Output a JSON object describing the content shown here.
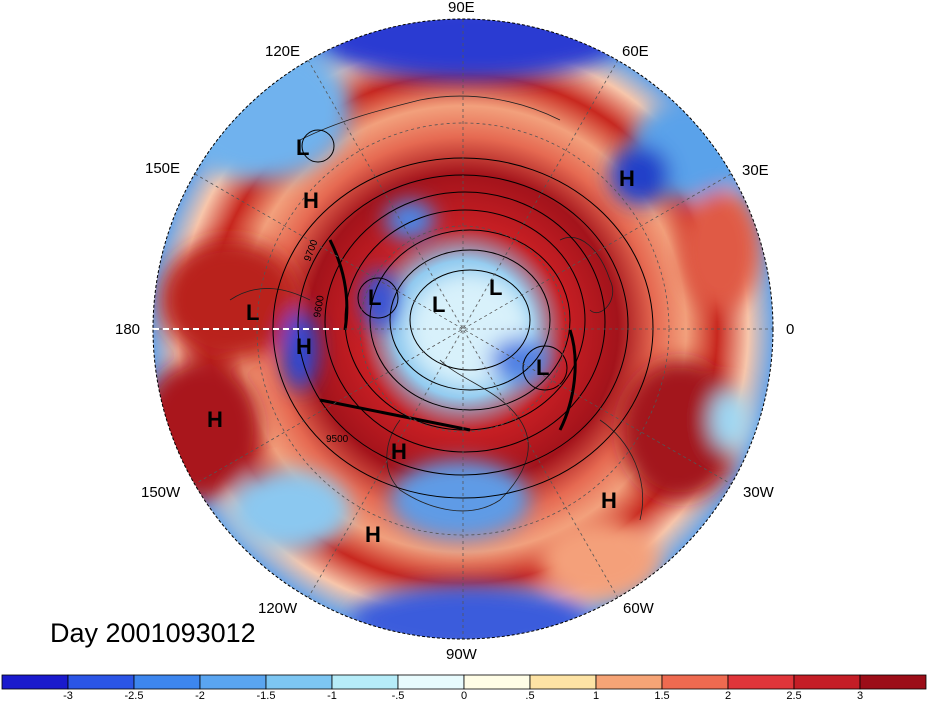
{
  "map": {
    "projection": "north-polar-stereographic",
    "longitude_labels": [
      "90E",
      "60E",
      "30E",
      "0",
      "30W",
      "60W",
      "90W",
      "120W",
      "150W",
      "180",
      "150E",
      "120E"
    ],
    "contour_labels": [
      "9700",
      "9600",
      "9500"
    ],
    "pressure_centers": [
      {
        "label": "L"
      },
      {
        "label": "H"
      },
      {
        "label": "H"
      },
      {
        "label": "L"
      },
      {
        "label": "H"
      },
      {
        "label": "L"
      },
      {
        "label": "L"
      },
      {
        "label": "L"
      },
      {
        "label": "L"
      },
      {
        "label": "H"
      },
      {
        "label": "H"
      },
      {
        "label": "H"
      },
      {
        "label": "H"
      }
    ],
    "date_text": "Day 2001093012"
  },
  "colorbar": {
    "ticks": [
      "-3",
      "-2.5",
      "-2",
      "-1.5",
      "-1",
      "-.5",
      "0",
      ".5",
      "1",
      "1.5",
      "2",
      "2.5",
      "3"
    ],
    "colors": [
      "#1a1acd",
      "#2b55e6",
      "#3d86ee",
      "#5aa5f0",
      "#7dc6f2",
      "#b6ecf8",
      "#e8fbfd",
      "#fffde6",
      "#fde3a5",
      "#f6a476",
      "#ee6a50",
      "#e0353a",
      "#c41d26",
      "#9c0d18"
    ]
  }
}
